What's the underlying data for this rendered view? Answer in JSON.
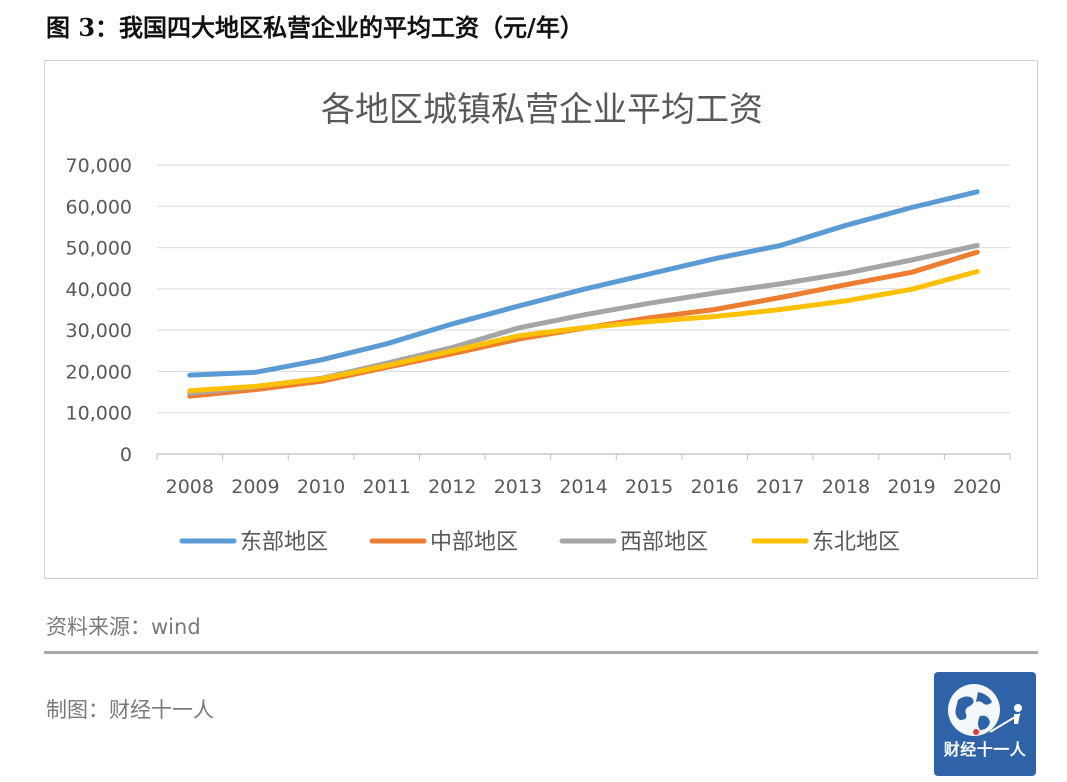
{
  "figure": {
    "title": "图 3：我国四大地区私营企业的平均工资（元/年）",
    "source": "资料来源：wind",
    "maker": "制图：财经十一人",
    "logo_text": "财经十一人"
  },
  "chart_data": {
    "type": "line",
    "title": "各地区城镇私营企业平均工资",
    "xlabel": "",
    "ylabel": "",
    "categories": [
      "2008",
      "2009",
      "2010",
      "2011",
      "2012",
      "2013",
      "2014",
      "2015",
      "2016",
      "2017",
      "2018",
      "2019",
      "2020"
    ],
    "ylim": [
      0,
      70000
    ],
    "yticks": [
      0,
      10000,
      20000,
      30000,
      40000,
      50000,
      60000,
      70000
    ],
    "ytick_labels": [
      "0",
      "10,000",
      "20,000",
      "30,000",
      "40,000",
      "50,000",
      "60,000",
      "70,000"
    ],
    "grid": true,
    "legend_position": "bottom",
    "series": [
      {
        "name": "东部地区",
        "color": "#5b9bd5",
        "values": [
          19100,
          19800,
          22800,
          26700,
          31500,
          35800,
          39900,
          43600,
          47300,
          50500,
          55400,
          59700,
          63500
        ]
      },
      {
        "name": "中部地区",
        "color": "#ed7d31",
        "values": [
          14000,
          15600,
          17600,
          21000,
          24300,
          27800,
          30500,
          33000,
          35000,
          37900,
          41000,
          44000,
          48900
        ]
      },
      {
        "name": "西部地区",
        "color": "#a5a5a5",
        "values": [
          14700,
          16300,
          18300,
          22000,
          25800,
          30500,
          33700,
          36500,
          39000,
          41200,
          43800,
          47000,
          50500
        ]
      },
      {
        "name": "东北地区",
        "color": "#ffc000",
        "values": [
          15300,
          16400,
          18200,
          21400,
          25000,
          28600,
          30600,
          32100,
          33300,
          35000,
          37100,
          39900,
          44200
        ]
      }
    ]
  }
}
